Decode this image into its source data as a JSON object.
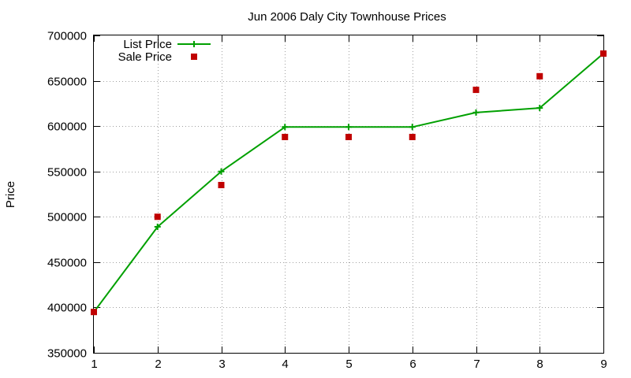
{
  "chart_data": {
    "type": "line",
    "title": "Jun 2006 Daly City Townhouse Prices",
    "xlabel": "",
    "ylabel": "Price",
    "x": [
      1,
      2,
      3,
      4,
      5,
      6,
      7,
      8,
      9
    ],
    "xlim": [
      1,
      9
    ],
    "ylim": [
      350000,
      700000
    ],
    "x_ticks": [
      "1",
      "2",
      "3",
      "4",
      "5",
      "6",
      "7",
      "8",
      "9"
    ],
    "y_ticks": [
      "350000",
      "400000",
      "450000",
      "500000",
      "550000",
      "600000",
      "650000",
      "700000"
    ],
    "grid": true,
    "legend_position": "top-left",
    "series": [
      {
        "name": "List Price",
        "style": "lines+crosses",
        "color": "#00a000",
        "values": [
          395000,
          489000,
          550000,
          599000,
          599000,
          599000,
          615000,
          620000,
          680000
        ]
      },
      {
        "name": "Sale Price",
        "style": "squares",
        "color": "#c00000",
        "values": [
          395000,
          500000,
          535000,
          588000,
          588000,
          588000,
          640000,
          655000,
          680000
        ]
      }
    ]
  }
}
